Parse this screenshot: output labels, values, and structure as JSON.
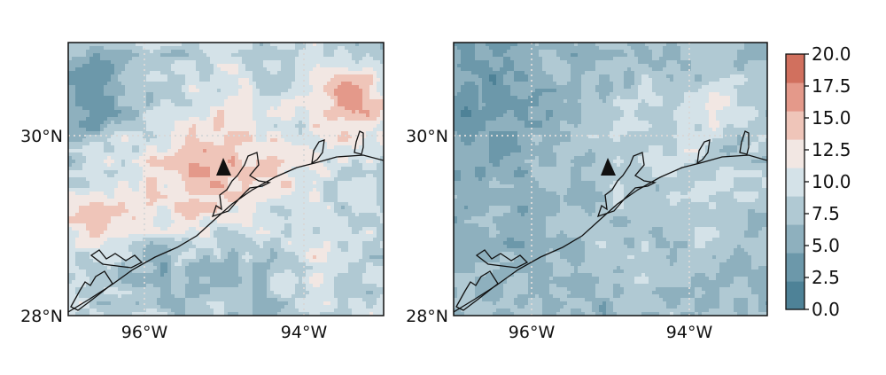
{
  "maps": [
    {
      "id": "left",
      "lat_ticks": [
        "30°N",
        "28°N"
      ],
      "lon_ticks": [
        "96°W",
        "94°W"
      ],
      "color_mode": "warm",
      "station_marker": "triangle"
    },
    {
      "id": "right",
      "lat_ticks": [
        "30°N",
        "28°N"
      ],
      "lon_ticks": [
        "96°W",
        "94°W"
      ],
      "color_mode": "cool",
      "station_marker": "triangle"
    }
  ],
  "colorbar": {
    "ticks": [
      "0.0",
      "2.5",
      "5.0",
      "7.5",
      "10.0",
      "12.5",
      "15.0",
      "17.5",
      "20.0"
    ],
    "colors": [
      "#4e8297",
      "#6c98aa",
      "#8eb0be",
      "#b0c9d3",
      "#d4e2e8",
      "#f2e7e3",
      "#efc5b9",
      "#e4998a",
      "#d1705e"
    ]
  },
  "colors": {
    "coastline": "#111111",
    "grid": "#d8d8d8",
    "marker": "#111111"
  }
}
